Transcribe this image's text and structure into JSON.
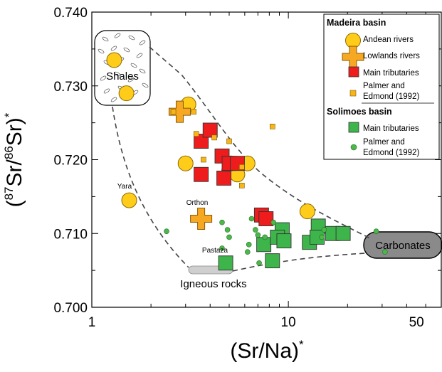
{
  "chart_data": {
    "type": "scatter",
    "x_scale": "log",
    "xlim": [
      1,
      60
    ],
    "ylim": [
      0.7,
      0.74
    ],
    "x_ticks": [
      "1",
      "10",
      "50"
    ],
    "y_ticks": [
      "0.700",
      "0.710",
      "0.720",
      "0.730",
      "0.740"
    ],
    "xlabel": {
      "main": "(Sr/Na)",
      "sup": "*"
    },
    "ylabel": {
      "open": "(",
      "sup1": "87",
      "mid": "Sr/",
      "sup2": "86",
      "tail": "Sr)",
      "sup3": "*"
    },
    "colors": {
      "andean": "#FFCC1A",
      "lowlands": "#F7A823",
      "madeira_trib": "#EE1C1C",
      "madeira_palmer": "#F7B51B",
      "solimoes_trib": "#3DB54A",
      "solimoes_palmer": "#4DB748",
      "shales_fill": "#ffffff",
      "igneous_fill": "#cfcfcf",
      "carbonates_fill": "#8a8a8a",
      "envelope": "#444444"
    },
    "legend": {
      "group1": "Madeira basin",
      "andean": "Andean rivers",
      "lowlands": "Lowlands rivers",
      "madeira_trib": "Main tributaries",
      "madeira_palmer": [
        "Palmer and",
        "Edmond (1992)"
      ],
      "group2": "Solimoes basin",
      "solimoes_trib": "Main tributaries",
      "solimoes_palmer": [
        "Palmer and",
        "Edmond (1992)"
      ]
    },
    "regions": {
      "shales": "Shales",
      "igneous": "Igneous rocks",
      "carbonates": "Carbonates"
    },
    "annotations": [
      "Yara",
      "Orthon",
      "Pastaza"
    ],
    "series": [
      {
        "key": "andean",
        "marker": "circle",
        "points": [
          [
            1.3,
            0.7335
          ],
          [
            1.5,
            0.729
          ],
          [
            3.1,
            0.7275
          ],
          [
            3.0,
            0.7195
          ],
          [
            5.0,
            0.7185
          ],
          [
            5.5,
            0.718
          ],
          [
            6.2,
            0.7195
          ],
          [
            5.1,
            0.7195
          ],
          [
            12.5,
            0.713
          ],
          [
            1.55,
            0.7145
          ]
        ]
      },
      {
        "key": "lowlands",
        "marker": "cross",
        "points": [
          [
            2.8,
            0.7265
          ],
          [
            3.6,
            0.712
          ]
        ]
      },
      {
        "key": "madeira_trib",
        "marker": "square",
        "points": [
          [
            3.6,
            0.7225
          ],
          [
            4.0,
            0.724
          ],
          [
            4.6,
            0.7205
          ],
          [
            5.0,
            0.7195
          ],
          [
            4.7,
            0.7175
          ],
          [
            3.6,
            0.718
          ],
          [
            5.5,
            0.7195
          ],
          [
            7.3,
            0.7125
          ],
          [
            7.7,
            0.712
          ]
        ]
      },
      {
        "key": "madeira_palmer",
        "marker": "small-square",
        "points": [
          [
            2.6,
            0.7265
          ],
          [
            3.3,
            0.7265
          ],
          [
            3.4,
            0.7235
          ],
          [
            3.7,
            0.72
          ],
          [
            4.2,
            0.723
          ],
          [
            5.0,
            0.7225
          ],
          [
            5.8,
            0.719
          ],
          [
            5.8,
            0.7165
          ],
          [
            8.3,
            0.7245
          ]
        ]
      },
      {
        "key": "solimoes_trib",
        "marker": "square",
        "points": [
          [
            4.8,
            0.706
          ],
          [
            7.5,
            0.7085
          ],
          [
            8.3,
            0.7063
          ],
          [
            9.3,
            0.7105
          ],
          [
            8.8,
            0.7095
          ],
          [
            9.5,
            0.709
          ],
          [
            12.8,
            0.7088
          ],
          [
            14.2,
            0.711
          ],
          [
            14.0,
            0.7095
          ],
          [
            16.8,
            0.71
          ],
          [
            19.0,
            0.71
          ]
        ]
      },
      {
        "key": "solimoes_palmer",
        "marker": "dot",
        "points": [
          [
            2.4,
            0.7103
          ],
          [
            4.6,
            0.7115
          ],
          [
            4.9,
            0.7105
          ],
          [
            5.0,
            0.7095
          ],
          [
            4.6,
            0.708
          ],
          [
            6.3,
            0.7085
          ],
          [
            6.8,
            0.7105
          ],
          [
            6.5,
            0.712
          ],
          [
            7.0,
            0.7098
          ],
          [
            6.2,
            0.7075
          ],
          [
            7.6,
            0.7095
          ],
          [
            8.4,
            0.7115
          ],
          [
            7.1,
            0.706
          ],
          [
            14.8,
            0.7095
          ],
          [
            15.2,
            0.7105
          ],
          [
            28.0,
            0.7103
          ],
          [
            31.0,
            0.7075
          ]
        ]
      }
    ]
  }
}
